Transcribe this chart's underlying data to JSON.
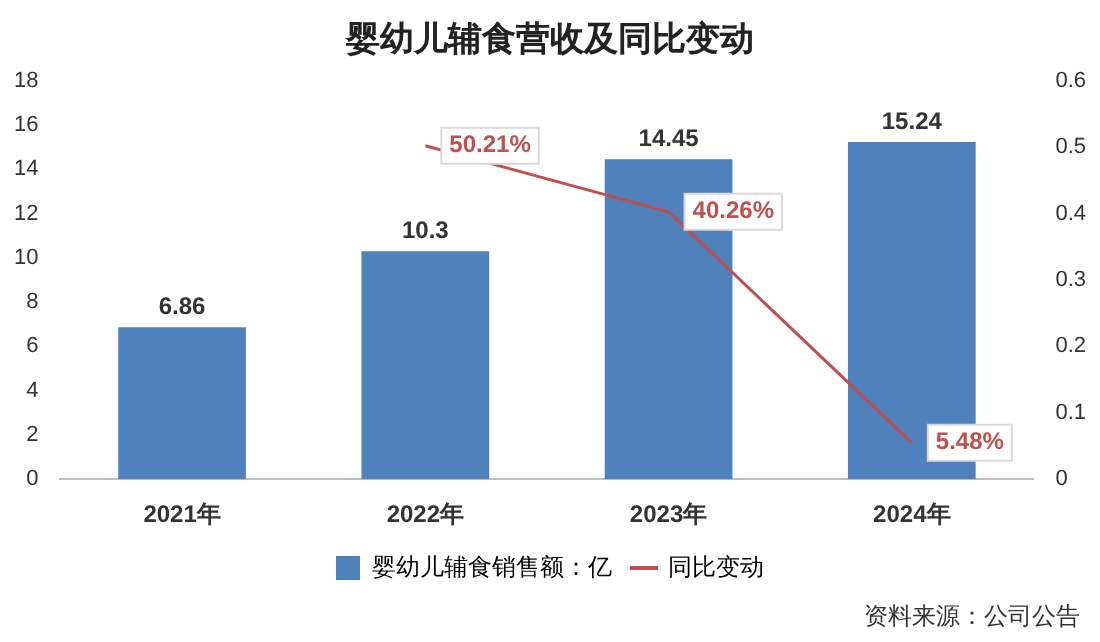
{
  "chart_data": {
    "type": "bar",
    "title": "婴幼儿辅食营收及同比变动",
    "categories": [
      "2021年",
      "2022年",
      "2023年",
      "2024年"
    ],
    "series": [
      {
        "name": "婴幼儿辅食销售额：亿",
        "color": "#4f81bd",
        "values": [
          6.86,
          10.3,
          14.45,
          15.24
        ],
        "value_labels": [
          "6.86",
          "10.3",
          "14.45",
          "15.24"
        ]
      },
      {
        "name": "同比变动",
        "type": "line",
        "axis": "y2",
        "color": "#c0504d",
        "values": [
          null,
          0.5021,
          0.4026,
          0.0548
        ],
        "value_labels": [
          null,
          "50.21%",
          "40.26%",
          "5.48%"
        ]
      }
    ],
    "ylim": [
      0,
      18
    ],
    "yticks": [
      0,
      2,
      4,
      6,
      8,
      10,
      12,
      14,
      16,
      18
    ],
    "y2lim": [
      0,
      0.6
    ],
    "y2ticks": [
      0,
      0.1,
      0.2,
      0.3,
      0.4,
      0.5,
      0.6
    ],
    "grid": false,
    "legend": "bottom",
    "marker": "none",
    "annotations": [
      "资料来源：公司公告"
    ]
  }
}
